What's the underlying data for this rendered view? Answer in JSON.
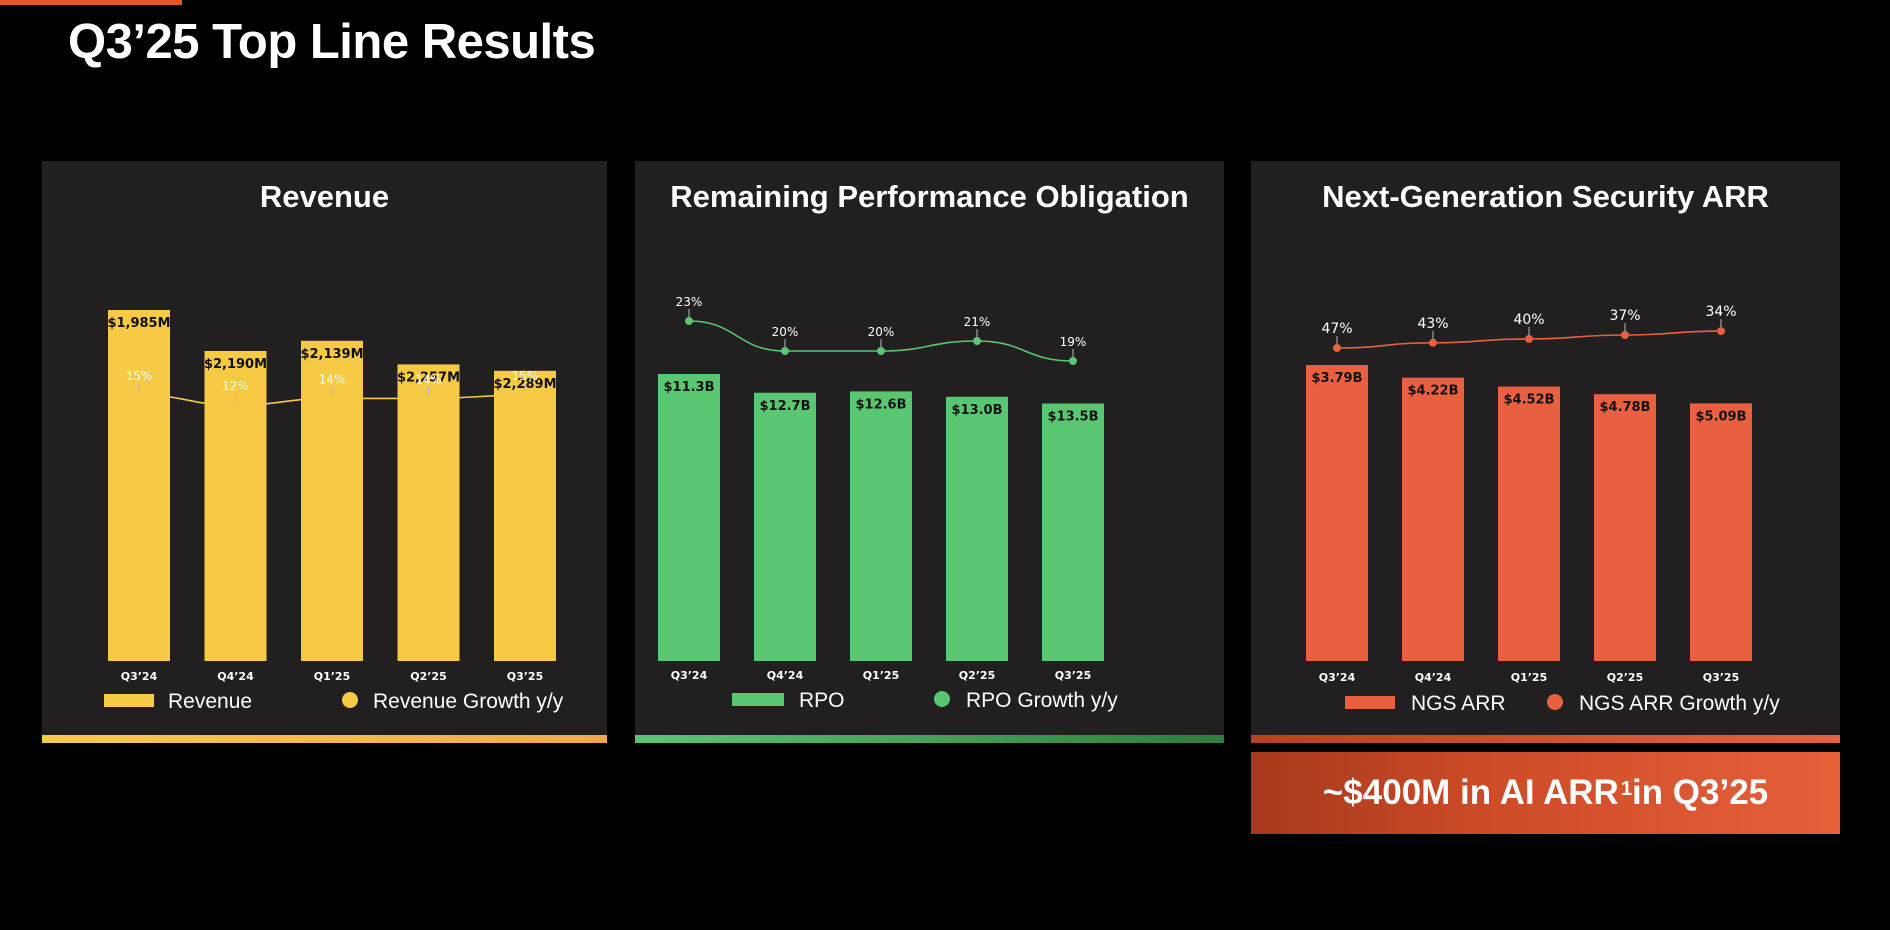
{
  "page": {
    "title": "Q3’25 Top Line Results",
    "accent_color": "#e3562a"
  },
  "chart_data": [
    {
      "type": "bar",
      "title": "Revenue",
      "categories": [
        "Q3’24",
        "Q4’24",
        "Q1’25",
        "Q2’25",
        "Q3’25"
      ],
      "series": [
        {
          "name": "Revenue",
          "values": [
            1985,
            2190,
            2139,
            2257,
            2289
          ],
          "labels": [
            "$1,985M",
            "$2,190M",
            "$2,139M",
            "$2,257M",
            "$2,289M"
          ],
          "color": "#f7ca45"
        },
        {
          "name": "Revenue Growth y/y",
          "type": "line",
          "values": [
            15,
            12,
            14,
            14,
            15
          ],
          "labels": [
            "15%",
            "12%",
            "14%",
            "14%",
            "15%"
          ],
          "color": "#f7ca45"
        }
      ],
      "legend": [
        "Revenue",
        "Revenue Growth y/y"
      ],
      "accent_color": "#f7ca45"
    },
    {
      "type": "bar",
      "title": "Remaining Performance Obligation",
      "categories": [
        "Q3’24",
        "Q4’24",
        "Q1’25",
        "Q2’25",
        "Q3’25"
      ],
      "series": [
        {
          "name": "RPO",
          "values": [
            11.3,
            12.7,
            12.6,
            13.0,
            13.5
          ],
          "labels": [
            "$11.3B",
            "$12.7B",
            "$12.6B",
            "$13.0B",
            "$13.5B"
          ],
          "color": "#59c771"
        },
        {
          "name": "RPO Growth y/y",
          "type": "line",
          "values": [
            23,
            20,
            20,
            21,
            19
          ],
          "labels": [
            "23%",
            "20%",
            "20%",
            "21%",
            "19%"
          ],
          "color": "#59c771"
        }
      ],
      "legend": [
        "RPO",
        "RPO Growth y/y"
      ],
      "accent_color": "#59c771"
    },
    {
      "type": "bar",
      "title": "Next-Generation Security ARR",
      "categories": [
        "Q3’24",
        "Q4’24",
        "Q1’25",
        "Q2’25",
        "Q3’25"
      ],
      "series": [
        {
          "name": "NGS ARR",
          "values": [
            3.79,
            4.22,
            4.52,
            4.78,
            5.09
          ],
          "labels": [
            "$3.79B",
            "$4.22B",
            "$4.52B",
            "$4.78B",
            "$5.09B"
          ],
          "color": "#e8603f"
        },
        {
          "name": "NGS ARR Growth y/y",
          "type": "line",
          "values": [
            47,
            43,
            40,
            37,
            34
          ],
          "labels": [
            "47%",
            "43%",
            "40%",
            "37%",
            "34%"
          ],
          "color": "#e8603f"
        }
      ],
      "legend": [
        "NGS ARR",
        "NGS ARR Growth y/y"
      ],
      "accent_color": "#e8603f"
    }
  ],
  "callout": {
    "text": "~$400M in AI ARR",
    "superscript": "1",
    "suffix": " in Q3’25"
  }
}
